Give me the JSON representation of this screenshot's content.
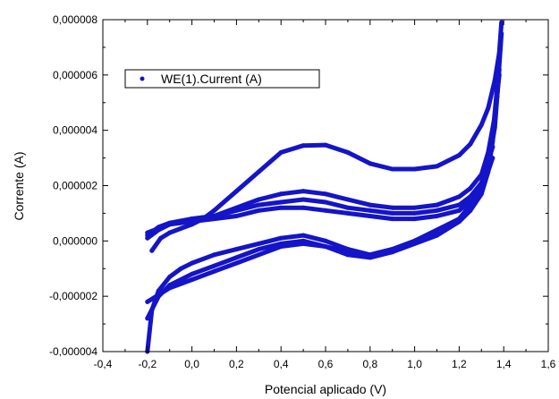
{
  "chart_data": {
    "type": "scatter",
    "title": "",
    "xlabel": "Potencial aplicado (V)",
    "ylabel": "Corrente (A)",
    "xlim": [
      -0.4,
      1.6
    ],
    "ylim": [
      -4e-06,
      8e-06
    ],
    "x_ticks": [
      -0.4,
      -0.2,
      0.0,
      0.2,
      0.4,
      0.6,
      0.8,
      1.0,
      1.2,
      1.4,
      1.6
    ],
    "x_tick_labels": [
      "-0,4",
      "-0,2",
      "0,0",
      "0,2",
      "0,4",
      "0,6",
      "0,8",
      "1,0",
      "1,2",
      "1,4",
      "1,6"
    ],
    "y_ticks": [
      -4e-06,
      -2e-06,
      0.0,
      2e-06,
      4e-06,
      6e-06,
      8e-06
    ],
    "y_tick_labels": [
      "-0,000004",
      "-0,000002",
      "0,000000",
      "0,000002",
      "0,000004",
      "0,000006",
      "0,000008"
    ],
    "legend_position": "top-left",
    "grid": false,
    "series": [
      {
        "name": "WE(1).Current (A)",
        "color": "#1414c8",
        "cycles": [
          {
            "x": [
              -0.18,
              -0.14,
              -0.1,
              -0.05,
              0.0,
              0.05,
              0.1,
              0.2,
              0.3,
              0.4,
              0.5,
              0.6,
              0.7,
              0.8,
              0.9,
              1.0,
              1.1,
              1.2,
              1.25,
              1.3,
              1.33,
              1.36,
              1.38,
              1.39
            ],
            "y": [
              -3.5e-07,
              1e-07,
              3e-07,
              4.5e-07,
              6e-07,
              8e-07,
              1.1e-06,
              1.8e-06,
              2.5e-06,
              3.2e-06,
              3.45e-06,
              3.47e-06,
              3.2e-06,
              2.8e-06,
              2.6e-06,
              2.6e-06,
              2.7e-06,
              3.1e-06,
              3.5e-06,
              4.2e-06,
              4.8e-06,
              5.8e-06,
              6.8e-06,
              7.9e-06
            ]
          },
          {
            "x": [
              -0.2,
              -0.15,
              -0.1,
              -0.05,
              0.0,
              0.1,
              0.2,
              0.3,
              0.4,
              0.5,
              0.6,
              0.7,
              0.8,
              0.9,
              1.0,
              1.1,
              1.2,
              1.25,
              1.3,
              1.33,
              1.36,
              1.38
            ],
            "y": [
              1e-07,
              4e-07,
              6e-07,
              7e-07,
              8e-07,
              9e-07,
              1.2e-06,
              1.5e-06,
              1.7e-06,
              1.8e-06,
              1.7e-06,
              1.5e-06,
              1.3e-06,
              1.2e-06,
              1.2e-06,
              1.3e-06,
              1.6e-06,
              1.9e-06,
              2.4e-06,
              3.2e-06,
              4.5e-06,
              6e-06
            ]
          },
          {
            "x": [
              -0.2,
              -0.15,
              -0.1,
              0.0,
              0.1,
              0.2,
              0.3,
              0.4,
              0.5,
              0.6,
              0.7,
              0.8,
              0.9,
              1.0,
              1.1,
              1.2,
              1.25,
              1.3,
              1.35
            ],
            "y": [
              2e-07,
              5e-07,
              6.5e-07,
              8e-07,
              9e-07,
              1.1e-06,
              1.3e-06,
              1.4e-06,
              1.5e-06,
              1.4e-06,
              1.2e-06,
              1.1e-06,
              1e-06,
              1e-06,
              1.1e-06,
              1.3e-06,
              1.6e-06,
              2.1e-06,
              3.4e-06
            ]
          },
          {
            "x": [
              -0.2,
              -0.1,
              0.0,
              0.1,
              0.2,
              0.3,
              0.4,
              0.5,
              0.6,
              0.7,
              0.8,
              0.9,
              1.0,
              1.1,
              1.2,
              1.3,
              1.35
            ],
            "y": [
              3e-07,
              6e-07,
              7e-07,
              8e-07,
              9e-07,
              1.1e-06,
              1.2e-06,
              1.2e-06,
              1.1e-06,
              1e-06,
              9e-07,
              8e-07,
              8e-07,
              9e-07,
              1.1e-06,
              1.8e-06,
              3e-06
            ]
          },
          {
            "x": [
              1.39,
              1.37,
              1.35,
              1.33,
              1.3,
              1.25,
              1.2,
              1.1,
              1.0,
              0.9,
              0.8,
              0.7,
              0.6,
              0.5,
              0.4,
              0.3,
              0.2,
              0.1,
              0.0,
              -0.05,
              -0.1,
              -0.15,
              -0.18,
              -0.2
            ],
            "y": [
              7.5e-06,
              5.2e-06,
              3.6e-06,
              2.5e-06,
              1.7e-06,
              1.1e-06,
              8e-07,
              4e-07,
              0.0,
              -3e-07,
              -5e-07,
              -3e-07,
              0.0,
              2e-07,
              1e-07,
              -1e-07,
              -3e-07,
              -5e-07,
              -8e-07,
              -1e-06,
              -1.3e-06,
              -1.8e-06,
              -2.5e-06,
              -4e-06
            ]
          },
          {
            "x": [
              1.38,
              1.36,
              1.33,
              1.3,
              1.25,
              1.2,
              1.1,
              1.0,
              0.9,
              0.8,
              0.7,
              0.6,
              0.5,
              0.4,
              0.3,
              0.2,
              0.1,
              0.0,
              -0.1,
              -0.15,
              -0.2
            ],
            "y": [
              6.2e-06,
              4.1e-06,
              2.7e-06,
              1.8e-06,
              1.1e-06,
              7e-07,
              2e-07,
              -1e-07,
              -4e-07,
              -6e-07,
              -5e-07,
              -2e-07,
              0.0,
              -1e-07,
              -3e-07,
              -6e-07,
              -9e-07,
              -1.2e-06,
              -1.6e-06,
              -2e-06,
              -2.8e-06
            ]
          },
          {
            "x": [
              1.37,
              1.35,
              1.32,
              1.28,
              1.2,
              1.1,
              1.0,
              0.9,
              0.8,
              0.7,
              0.6,
              0.5,
              0.4,
              0.3,
              0.2,
              0.1,
              0.0,
              -0.1,
              -0.2
            ],
            "y": [
              5.5e-06,
              3.8e-06,
              2.5e-06,
              1.6e-06,
              8e-07,
              3e-07,
              0.0,
              -3e-07,
              -5e-07,
              -4e-07,
              -2e-07,
              -1e-07,
              -2e-07,
              -5e-07,
              -8e-07,
              -1.1e-06,
              -1.4e-06,
              -1.7e-06,
              -2.2e-06
            ]
          }
        ]
      }
    ]
  }
}
